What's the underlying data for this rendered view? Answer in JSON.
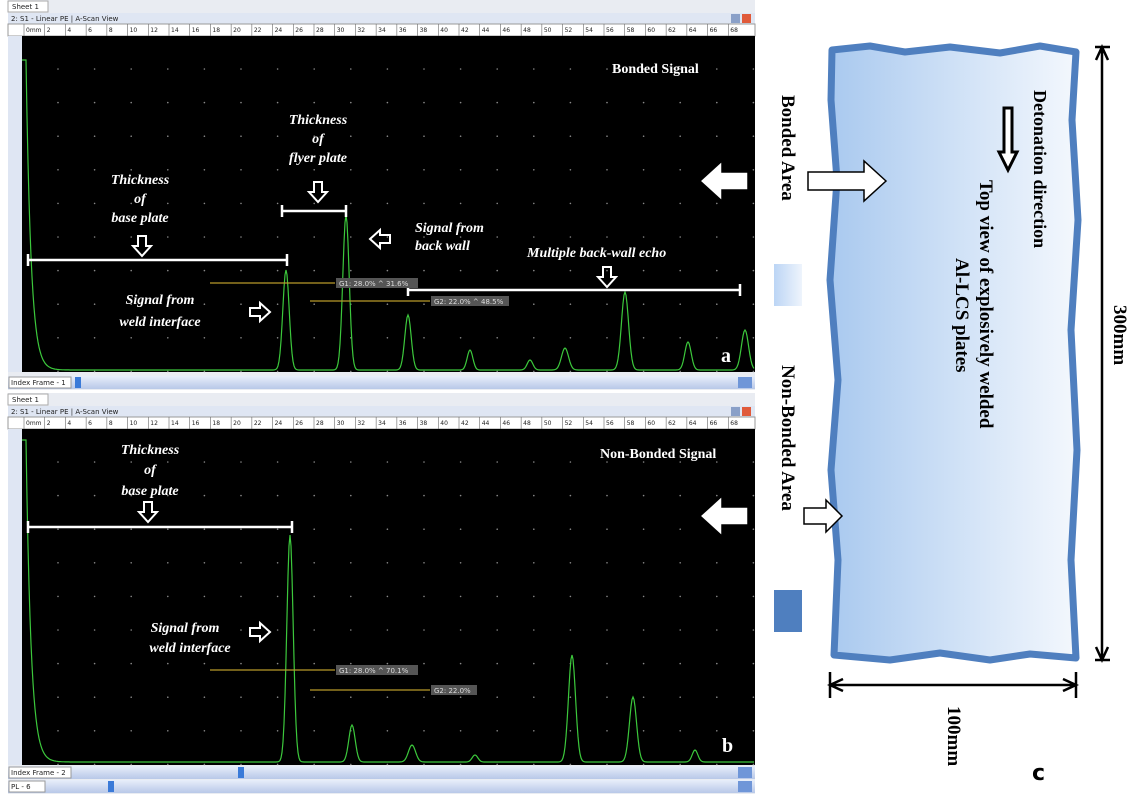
{
  "panel_a": {
    "tab": "Sheet 1",
    "window_title": "2: S1 - Linear PE | A-Scan View",
    "ruler_labels": [
      "0mm",
      "2",
      "4",
      "6",
      "8",
      "10",
      "12",
      "14",
      "16",
      "18",
      "20",
      "22",
      "24",
      "26",
      "28",
      "30",
      "32",
      "34",
      "36",
      "38",
      "40",
      "42",
      "44",
      "46",
      "48",
      "50",
      "52",
      "54",
      "56",
      "58",
      "60",
      "62",
      "64",
      "66",
      "68"
    ],
    "signal_title": "Bonded Signal",
    "flyer_label": [
      "Thickness",
      "of",
      "flyer plate"
    ],
    "base_label": [
      "Thickness",
      "of",
      "base plate"
    ],
    "back_wall_label": [
      "Signal from",
      "back wall"
    ],
    "multiple_label": "Multiple back-wall echo",
    "weld_label": [
      "Signal from",
      "weld interface"
    ],
    "gates": [
      "G1: 28.0% ^ 31.6%",
      "G2: 22.0% ^ 48.5%"
    ],
    "index_frame": "Index Frame - 1",
    "panel_label": "a"
  },
  "panel_b": {
    "tab": "Sheet 1",
    "window_title": "2: S1 - Linear PE | A-Scan View",
    "signal_title": "Non-Bonded Signal",
    "base_label": [
      "Thickness",
      "of",
      "base plate"
    ],
    "weld_label": [
      "Signal from",
      "weld interface"
    ],
    "gates": [
      "G1: 28.0% ^ 70.1%",
      "G2: 22.0%"
    ],
    "index_frame": "Index Frame - 2",
    "pl": "PL - 6",
    "panel_label": "b"
  },
  "panel_c": {
    "bonded_area": "Bonded Area",
    "non_bonded_area": "Non-Bonded Area",
    "detonation": "Detonation direction",
    "plate_title": [
      "Top view of explosively welded",
      "Al-LCS plates"
    ],
    "height": "300mm",
    "width": "100mm",
    "panel_label": "c"
  }
}
